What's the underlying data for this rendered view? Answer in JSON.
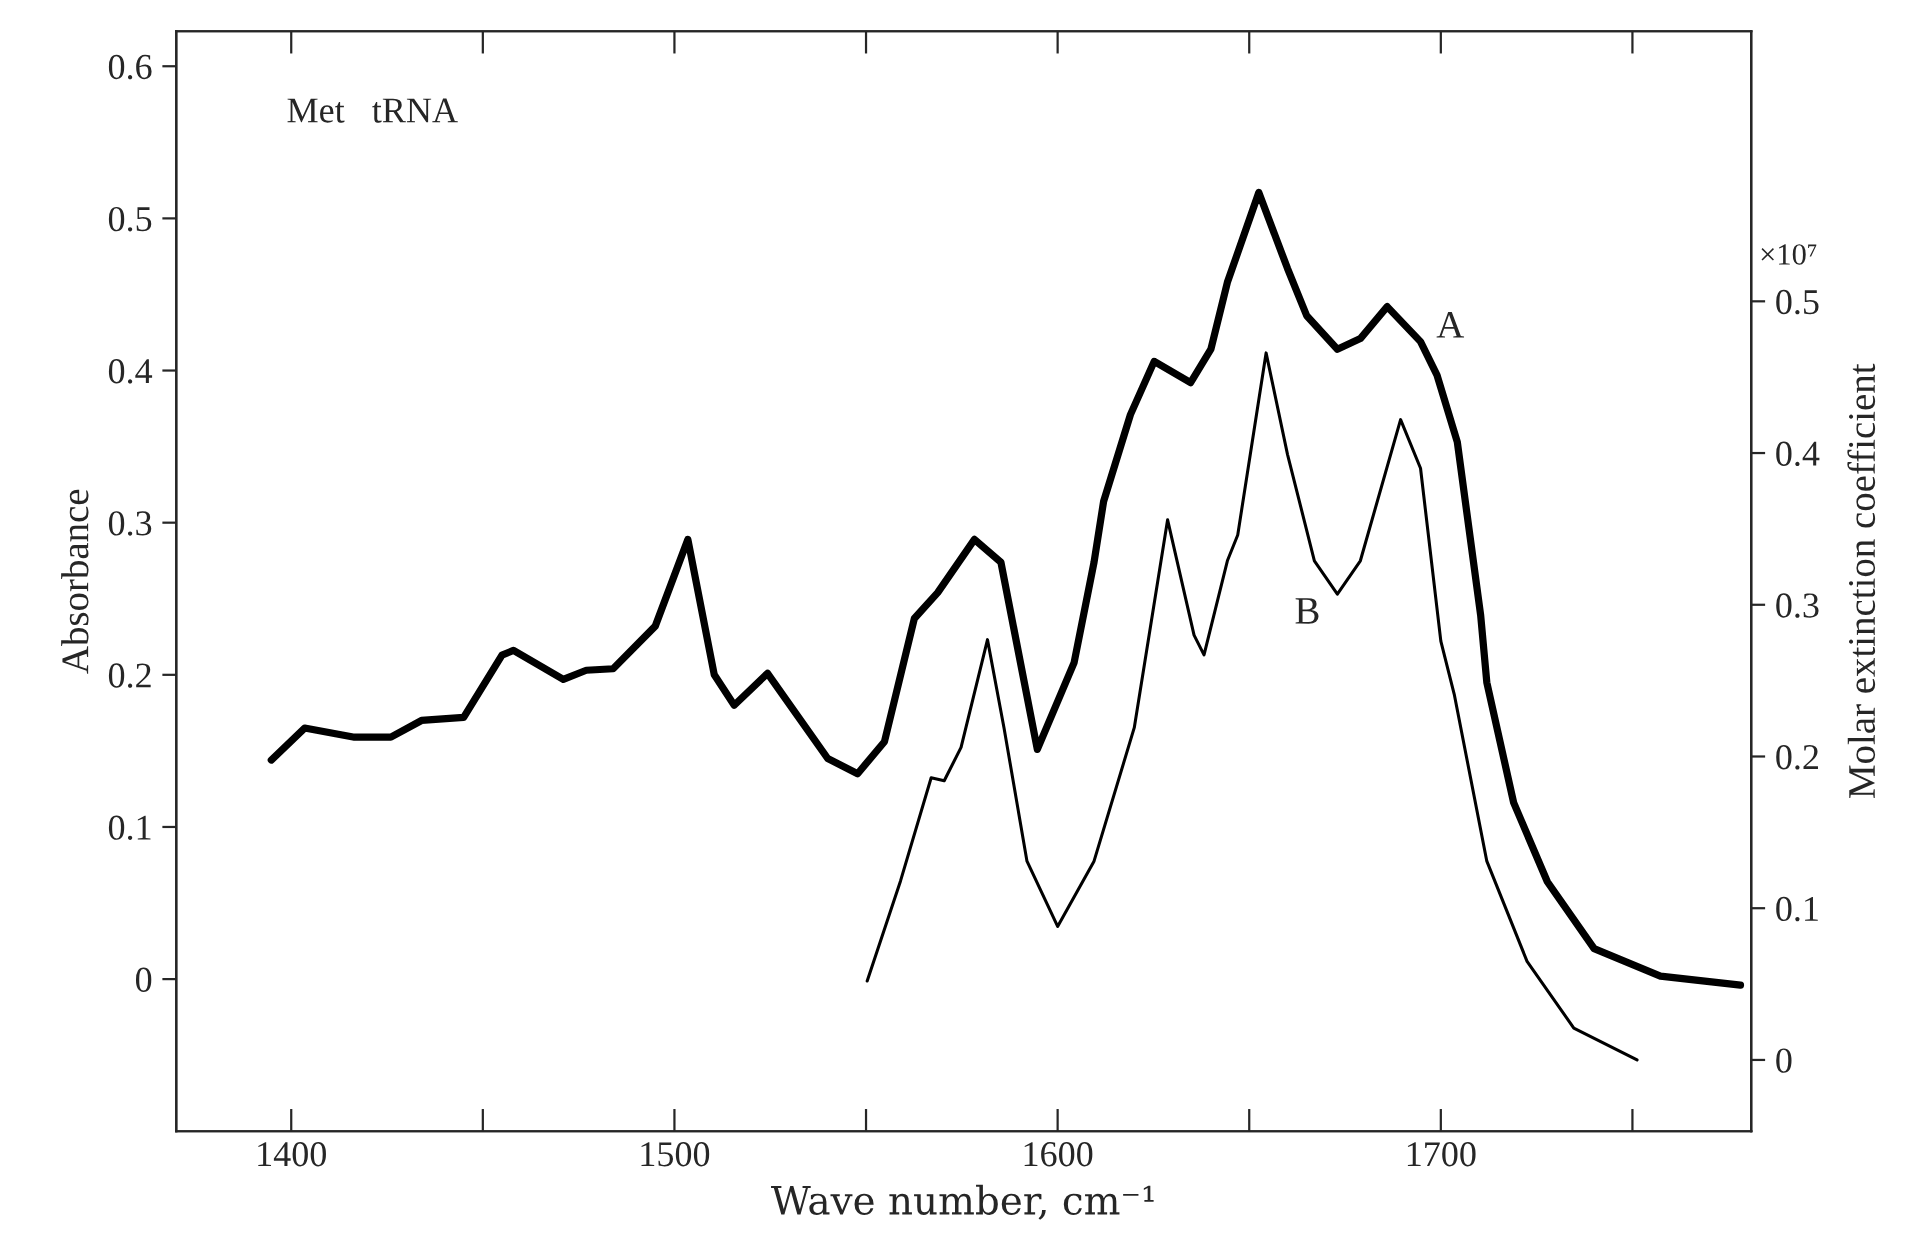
{
  "chart_data": {
    "type": "line",
    "xlabel": "Wave number, cm⁻¹",
    "ylabel": "Absorbance",
    "y2label": "Molar extinction coefficient",
    "xlim": [
      1370,
      1781
    ],
    "ylim": [
      -0.1,
      0.623
    ],
    "y2lim": [
      -0.047,
      0.678
    ],
    "xticks": [
      1400,
      {
        "value": 1450,
        "label": null
      },
      1500,
      {
        "value": 1550,
        "label": null
      },
      1600,
      {
        "value": 1650,
        "label": null
      },
      1700,
      {
        "value": 1750,
        "label": null
      }
    ],
    "yticks": [
      0,
      0.1,
      0.2,
      0.3,
      0.4,
      0.5,
      0.6
    ],
    "y2ticks": [
      0,
      0.1,
      0.2,
      0.3,
      0.4,
      0.5
    ],
    "grid": false,
    "legend": false,
    "marker": "none",
    "line_style": "solid",
    "series": [
      {
        "color": "#000000",
        "x": [
          1394.8,
          1403.5,
          1416.5,
          1426,
          1434,
          1445,
          1455,
          1458,
          1471,
          1477,
          1484,
          1495,
          1503.5,
          1510.4,
          1515.6,
          1524.3,
          1540,
          1547.8,
          1554.8,
          1562.6,
          1568.7,
          1578.3,
          1585.2,
          1594.7,
          1604.3,
          1609.5,
          1612,
          1619,
          1625.2,
          1634.7,
          1640,
          1644.3,
          1652.5,
          1660,
          1665,
          1673,
          1679,
          1686,
          1694.7,
          1699,
          1704.3,
          1710.4,
          1712,
          1719,
          1727.8,
          1740,
          1757.3,
          1778.2
        ],
        "values": [
          0.144,
          0.165,
          0.159,
          0.159,
          0.17,
          0.172,
          0.213,
          0.216,
          0.197,
          0.203,
          0.204,
          0.232,
          0.289,
          0.2,
          0.18,
          0.201,
          0.145,
          0.135,
          0.156,
          0.237,
          0.254,
          0.289,
          0.274,
          0.151,
          0.208,
          0.274,
          0.314,
          0.371,
          0.406,
          0.392,
          0.414,
          0.458,
          0.517,
          0.467,
          0.436,
          0.414,
          0.421,
          0.442,
          0.419,
          0.397,
          0.353,
          0.239,
          0.195,
          0.116,
          0.064,
          0.02,
          0.002,
          -0.004
        ]
      },
      {
        "color": "#000000",
        "axis": "y2",
        "x": [
          1550.3,
          1559,
          1567,
          1570.4,
          1574.8,
          1581.7,
          1586,
          1592,
          1600,
          1609.5,
          1620,
          1628.7,
          1635.6,
          1638.2,
          1644.3,
          1647,
          1654.4,
          1660,
          1667,
          1673,
          1679,
          1689.5,
          1694.7,
          1700,
          1703.5,
          1712,
          1722.5,
          1734.7,
          1751.2
        ],
        "values": [
          0.052,
          0.118,
          0.186,
          0.184,
          0.206,
          0.277,
          0.219,
          0.131,
          0.088,
          0.131,
          0.219,
          0.356,
          0.28,
          0.267,
          0.329,
          0.346,
          0.466,
          0.399,
          0.329,
          0.307,
          0.329,
          0.422,
          0.39,
          0.276,
          0.241,
          0.131,
          0.065,
          0.021,
          0.0
        ]
      }
    ],
    "annotations": [
      "Met   tRNA",
      "×10⁷",
      "A",
      "B"
    ]
  }
}
